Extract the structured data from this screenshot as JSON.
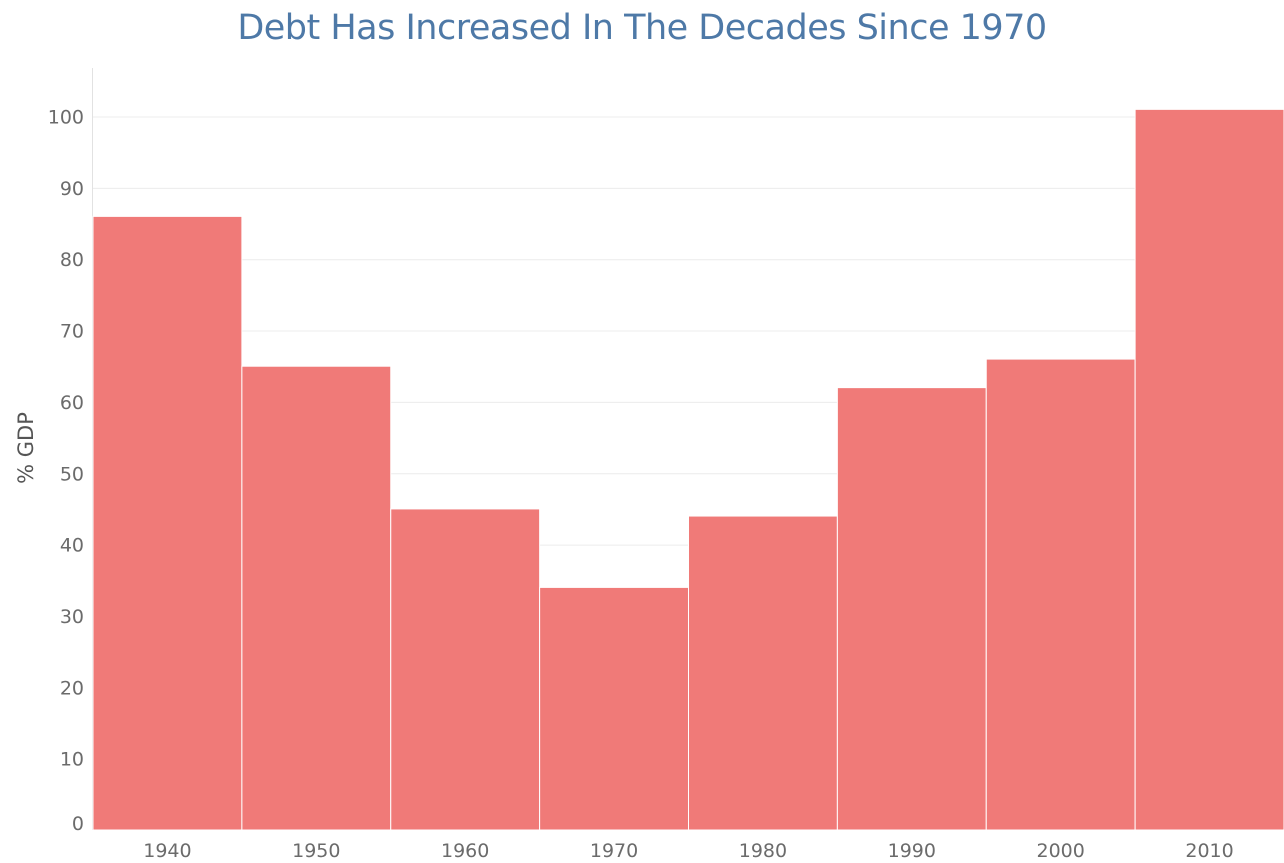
{
  "chart_data": {
    "type": "bar",
    "title": "Debt Has Increased In The Decades Since 1970",
    "xlabel": "",
    "ylabel": "% GDP",
    "categories": [
      "1940",
      "1950",
      "1960",
      "1970",
      "1980",
      "1990",
      "2000",
      "2010"
    ],
    "values": [
      86,
      65,
      45,
      34,
      44,
      62,
      66,
      101
    ],
    "ylim": [
      0,
      106
    ],
    "yticks": [
      0,
      10,
      20,
      30,
      40,
      50,
      60,
      70,
      80,
      90,
      100
    ],
    "grid": true,
    "legend": "none",
    "colors": {
      "bar": "#f07a78",
      "title": "#4e79a7"
    }
  }
}
